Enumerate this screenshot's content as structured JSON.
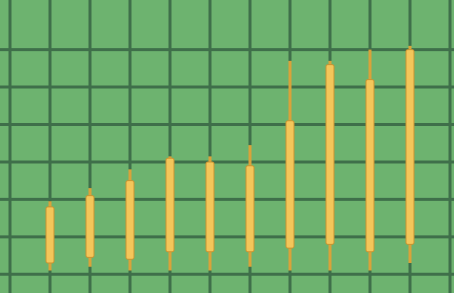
{
  "chart_data": {
    "type": "candlestick",
    "categories": [
      null,
      null,
      null,
      null,
      null,
      null,
      null,
      null,
      null,
      null
    ],
    "open": [
      0.3,
      0.45,
      0.4,
      0.6,
      0.6,
      0.6,
      0.7,
      0.8,
      0.6,
      0.8
    ],
    "close": [
      1.8,
      2.1,
      2.5,
      3.1,
      3.0,
      2.9,
      4.1,
      5.6,
      5.2,
      6.0
    ],
    "low": [
      0.1,
      0.2,
      0.1,
      0.1,
      0.1,
      0.2,
      0.1,
      0.1,
      0.1,
      0.3
    ],
    "high": [
      1.95,
      2.3,
      2.8,
      3.15,
      3.15,
      3.45,
      5.7,
      5.7,
      6.0,
      6.1
    ],
    "color": "#f4c65a",
    "ylim": [
      -0.5,
      7.325
    ],
    "yticks": [
      0,
      1,
      2,
      3,
      4,
      5,
      6
    ],
    "grid": true
  }
}
